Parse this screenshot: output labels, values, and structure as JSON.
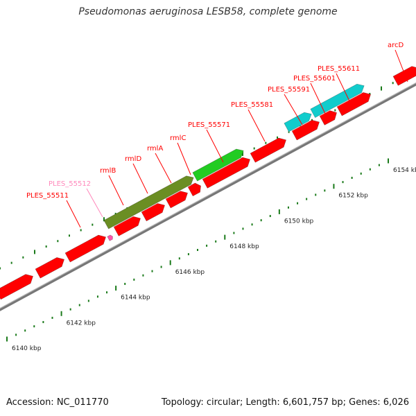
{
  "title": "Pseudomonas aeruginosa LESB58, complete genome",
  "footer": {
    "accession": "Accession: NC_011770",
    "summary": "Topology: circular; Length: 6,601,757 bp; Genes: 6,026"
  },
  "colors": {
    "cds": "#ff0000",
    "trna_label": "#ff88bb",
    "operon_olive": "#6b8e23",
    "operon_green": "#22cc22",
    "operon_cyan": "#11cccc",
    "backbone": "#888888",
    "tick": "#1a7a1a"
  },
  "scale_ticks": [
    {
      "kbp": 6140,
      "label": "6140 kbp"
    },
    {
      "kbp": 6142,
      "label": "6142 kbp"
    },
    {
      "kbp": 6144,
      "label": "6144 kbp"
    },
    {
      "kbp": 6146,
      "label": "6146 kbp"
    },
    {
      "kbp": 6148,
      "label": "6148 kbp"
    },
    {
      "kbp": 6150,
      "label": "6150 kbp"
    },
    {
      "kbp": 6152,
      "label": "6152 kbp"
    },
    {
      "kbp": 6154,
      "label": "6154 kbp"
    }
  ],
  "gene_labels": [
    {
      "name": "PLES_55511",
      "kind": "cds"
    },
    {
      "name": "PLES_55512",
      "kind": "trna"
    },
    {
      "name": "rmlB",
      "kind": "cds"
    },
    {
      "name": "rmlD",
      "kind": "cds"
    },
    {
      "name": "rmlA",
      "kind": "cds"
    },
    {
      "name": "rmlC",
      "kind": "cds"
    },
    {
      "name": "PLES_55571",
      "kind": "cds"
    },
    {
      "name": "PLES_55581",
      "kind": "cds"
    },
    {
      "name": "PLES_55591",
      "kind": "cds"
    },
    {
      "name": "PLES_55601",
      "kind": "cds"
    },
    {
      "name": "PLES_55611",
      "kind": "cds"
    },
    {
      "name": "arcD",
      "kind": "cds"
    }
  ]
}
